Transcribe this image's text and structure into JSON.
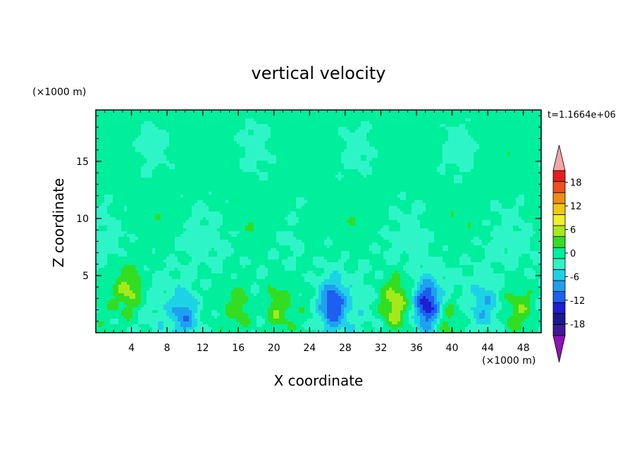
{
  "chart_data": {
    "type": "heatmap",
    "title": "vertical velocity",
    "xlabel": "X coordinate",
    "ylabel": "Z coordinate",
    "x_unit": "(×1000 m)",
    "y_unit": "(×1000 m)",
    "time_label": "t=1.1664e+06",
    "xlim": [
      0,
      50
    ],
    "ylim": [
      0,
      19.5
    ],
    "x_ticks": [
      4,
      8,
      12,
      16,
      20,
      24,
      28,
      32,
      36,
      40,
      44,
      48
    ],
    "y_ticks": [
      5,
      10,
      15
    ],
    "grid": false,
    "colorbar": {
      "labels": [
        "18",
        "12",
        "6",
        "0",
        "-6",
        "-12",
        "-18"
      ],
      "label_values": [
        18,
        12,
        6,
        0,
        -6,
        -12,
        -18
      ],
      "levels": [
        -21,
        -18,
        -15,
        -12,
        -9,
        -6,
        -3,
        0,
        3,
        6,
        9,
        12,
        15,
        18,
        21
      ],
      "colors": [
        "#3f1a96",
        "#1a1a8c",
        "#1e1ed2",
        "#1e5ff0",
        "#1ea0f0",
        "#1ed2e6",
        "#2ef5c8",
        "#00ef9c",
        "#33dd22",
        "#a6e81a",
        "#f0f028",
        "#f0c814",
        "#f08c14",
        "#f0501e",
        "#e61e1e"
      ],
      "under_color": "#8c14b4",
      "over_color": "#f5a5a5"
    },
    "features": [
      {
        "kind": "updraft",
        "x": 3.8,
        "z": 3.8,
        "peak": 7
      },
      {
        "kind": "updraft",
        "x": 16.2,
        "z": 2.2,
        "peak": 6
      },
      {
        "kind": "updraft",
        "x": 20.2,
        "z": 2.2,
        "peak": 6
      },
      {
        "kind": "updraft",
        "x": 33.5,
        "z": 2.6,
        "peak": 7
      },
      {
        "kind": "updraft",
        "x": 39.5,
        "z": 1.2,
        "peak": 6
      },
      {
        "kind": "updraft",
        "x": 47.8,
        "z": 2.0,
        "peak": 4
      },
      {
        "kind": "updraft",
        "x": 24.4,
        "z": 8.4,
        "peak": 3
      },
      {
        "kind": "downdraft",
        "x": 10.0,
        "z": 1.6,
        "peak": -9
      },
      {
        "kind": "downdraft",
        "x": 26.5,
        "z": 2.4,
        "peak": -12
      },
      {
        "kind": "downdraft",
        "x": 37.2,
        "z": 2.4,
        "peak": -15
      },
      {
        "kind": "downdraft",
        "x": 43.8,
        "z": 2.4,
        "peak": -6
      }
    ]
  }
}
